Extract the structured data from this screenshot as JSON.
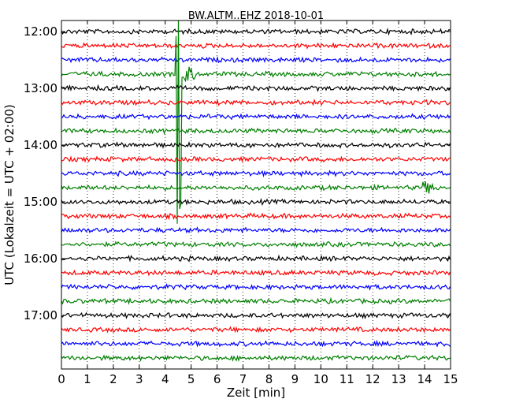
{
  "chart_data": {
    "type": "line",
    "title": "BW.ALTM..EHZ 2018-10-01",
    "xlabel": "Zeit  [min]",
    "ylabel": "UTC (Lokalzeit = UTC + 02:00)",
    "xlim": [
      0,
      15
    ],
    "x_ticks": [
      "0",
      "1",
      "2",
      "3",
      "4",
      "5",
      "6",
      "7",
      "8",
      "9",
      "10",
      "11",
      "12",
      "13",
      "14",
      "15"
    ],
    "y_ticks": [
      "12:00",
      "13:00",
      "14:00",
      "15:00",
      "16:00",
      "17:00"
    ],
    "grid": "vertical-dotted",
    "trace_interval_min": 15,
    "series_colors": [
      "#000000",
      "#ff0000",
      "#0000ff",
      "#008000"
    ],
    "traces": [
      "12:00",
      "12:15",
      "12:30",
      "12:45",
      "13:00",
      "13:15",
      "13:30",
      "13:45",
      "14:00",
      "14:15",
      "14:30",
      "14:45",
      "15:00",
      "15:15",
      "15:30",
      "15:45",
      "16:00",
      "16:15",
      "16:30",
      "16:45",
      "17:00",
      "17:15",
      "17:30",
      "17:45"
    ],
    "events": [
      {
        "trace": "12:45",
        "start_min": 4.4,
        "end_min": 5.3,
        "peak": "large"
      },
      {
        "trace": "14:45",
        "start_min": 13.9,
        "end_min": 14.4,
        "peak": "small"
      }
    ]
  }
}
